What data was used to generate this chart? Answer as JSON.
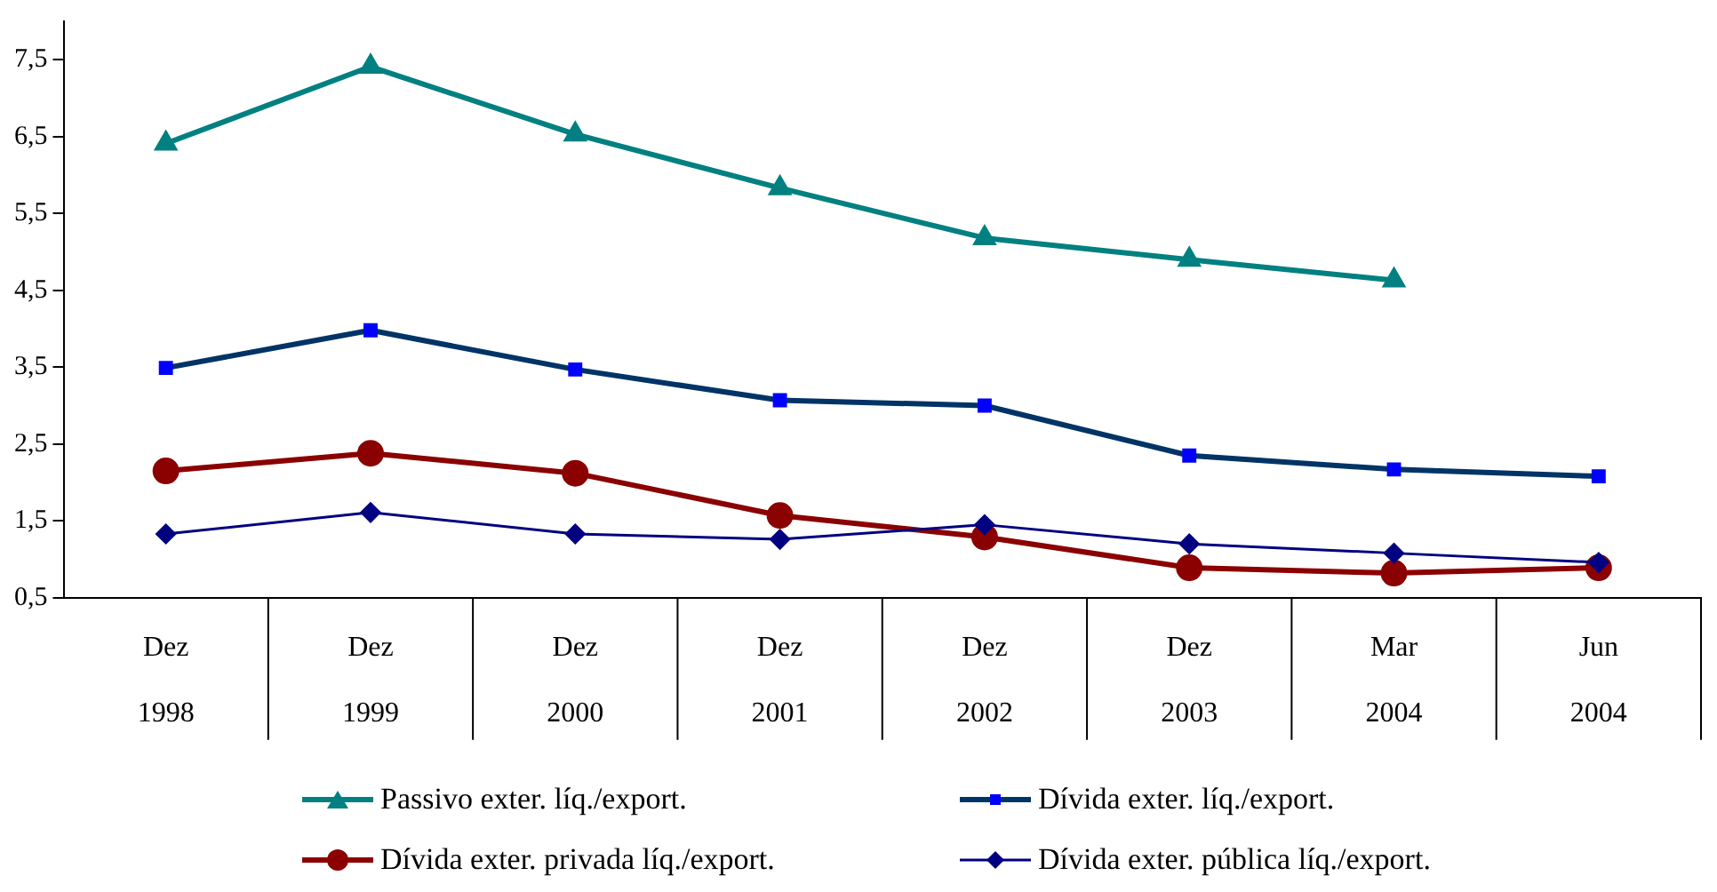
{
  "chart_data": {
    "type": "line",
    "categories": [
      "Dez 1998",
      "Dez 1999",
      "Dez 2000",
      "Dez 2001",
      "Dez 2002",
      "Dez 2003",
      "Mar 2004",
      "Jun 2004"
    ],
    "ylim": [
      0.5,
      8
    ],
    "yticks": [
      {
        "value": 0.5,
        "label": "0,5"
      },
      {
        "value": 1.5,
        "label": "1,5"
      },
      {
        "value": 2.5,
        "label": "2,5"
      },
      {
        "value": 3.5,
        "label": "3,5"
      },
      {
        "value": 4.5,
        "label": "4,5"
      },
      {
        "value": 5.5,
        "label": "5,5"
      },
      {
        "value": 6.5,
        "label": "6,5"
      },
      {
        "value": 7.5,
        "label": "7,5"
      }
    ],
    "grid": false,
    "legend": "bottom",
    "series": [
      {
        "name": "Passivo exter. líq./export.",
        "color": "#008080",
        "marker": "triangle",
        "values": [
          6.41,
          7.41,
          6.53,
          5.83,
          5.18,
          4.9,
          4.63,
          null
        ]
      },
      {
        "name": "Dívida exter. líq./export.",
        "color": "#003366",
        "marker": "square",
        "values": [
          3.49,
          3.98,
          3.47,
          3.07,
          3.0,
          2.35,
          2.17,
          2.08
        ]
      },
      {
        "name": "Dívida exter. privada líq./export.",
        "color": "#8b0000",
        "marker": "circle",
        "values": [
          2.15,
          2.38,
          2.12,
          1.57,
          1.29,
          0.89,
          0.82,
          0.89
        ]
      },
      {
        "name": "Dívida exter. pública líq./export.",
        "color": "#000080",
        "marker": "diamond",
        "values": [
          1.33,
          1.61,
          1.33,
          1.26,
          1.45,
          1.2,
          1.08,
          0.96
        ]
      }
    ]
  }
}
